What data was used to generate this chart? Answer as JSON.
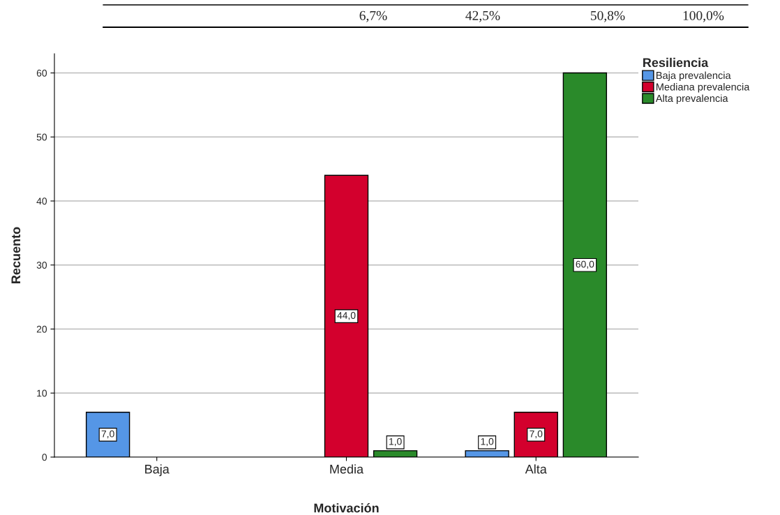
{
  "chart_data": {
    "type": "bar",
    "xlabel": "Motivación",
    "ylabel": "Recuento",
    "legend_title": "Resiliencia",
    "categories": [
      "Baja",
      "Media",
      "Alta"
    ],
    "series": [
      {
        "name": "Baja prevalencia",
        "color": "#5596e6",
        "values": [
          7,
          null,
          1
        ],
        "value_labels": [
          "7,0",
          null,
          "1,0"
        ]
      },
      {
        "name": "Mediana prevalencia",
        "color": "#d3002d",
        "values": [
          null,
          44,
          7
        ],
        "value_labels": [
          null,
          "44,0",
          "7,0"
        ]
      },
      {
        "name": "Alta prevalencia",
        "color": "#2a8a2a",
        "values": [
          null,
          1,
          60
        ],
        "value_labels": [
          null,
          "1,0",
          "60,0"
        ]
      }
    ],
    "ylim": [
      0,
      63
    ],
    "yticks": [
      0,
      10,
      20,
      30,
      40,
      50,
      60
    ],
    "grid": "y",
    "legend": "top right",
    "annotations": [
      "6,7%",
      "42,5%",
      "50,8%",
      "100,0%"
    ]
  }
}
